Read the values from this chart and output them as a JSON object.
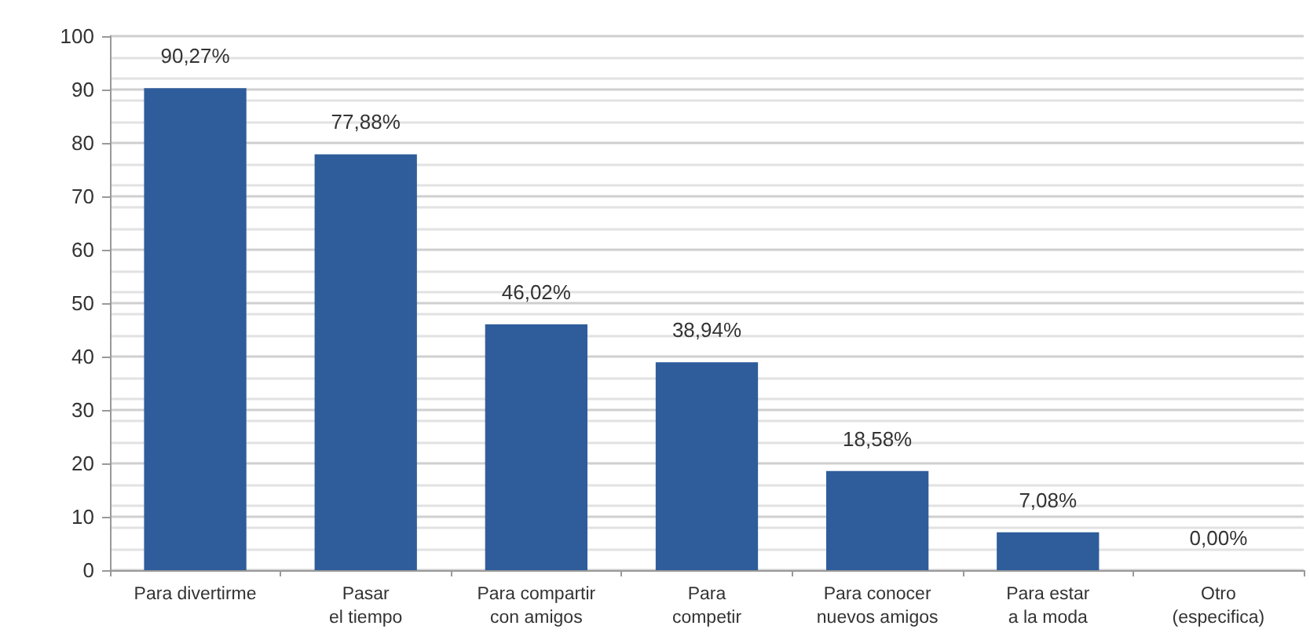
{
  "chart_data": {
    "type": "bar",
    "categories": [
      "Para divertirme",
      "Pasar\nel tiempo",
      "Para compartir\ncon amigos",
      "Para\ncompetir",
      "Para conocer\nnuevos amigos",
      "Para estar\na la moda",
      "Otro\n(especifica)"
    ],
    "values": [
      90.27,
      77.88,
      46.02,
      38.94,
      18.58,
      7.08,
      0
    ],
    "value_labels": [
      "90,27%",
      "77,88%",
      "46,02%",
      "38,94%",
      "18,58%",
      "7,08%",
      "0,00%"
    ],
    "color": "#2f5d9b",
    "ylim": [
      0,
      100
    ],
    "yticks": [
      0,
      10,
      20,
      30,
      40,
      50,
      60,
      70,
      80,
      90,
      100
    ],
    "grid": "y"
  }
}
